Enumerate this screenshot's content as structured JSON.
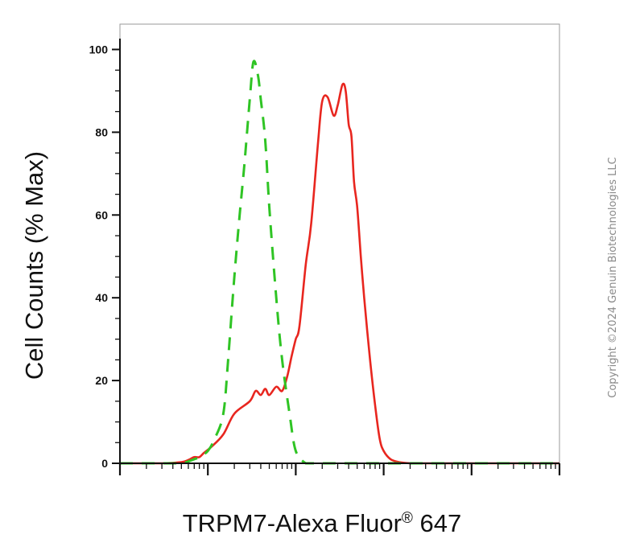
{
  "chart_data": {
    "type": "line",
    "ylabel": "Cell Counts (% Max)",
    "xlabel": {
      "main": "TRPM7-Alexa Fluor",
      "sup": "®",
      "tail": " 647"
    },
    "yticks": [
      "0",
      "20",
      "40",
      "60",
      "80",
      "100"
    ],
    "ylim": [
      0,
      105
    ],
    "xscale": "log",
    "xlim": [
      0.01,
      1000
    ],
    "grid": false,
    "series": [
      {
        "color": "#e8261f",
        "style": "solid",
        "x": [
          0.01,
          0.03,
          0.05,
          0.06,
          0.07,
          0.08,
          0.09,
          0.11,
          0.15,
          0.2,
          0.3,
          0.35,
          0.4,
          0.45,
          0.5,
          0.6,
          0.7,
          0.8,
          0.9,
          1.0,
          1.1,
          1.3,
          1.5,
          1.8,
          2.0,
          2.3,
          2.7,
          3.0,
          3.4,
          3.7,
          4.0,
          4.3,
          4.6,
          5.0,
          5.5,
          6.0,
          7.0,
          8.0,
          9.0,
          10,
          12,
          15,
          20,
          25,
          30,
          40,
          60,
          100,
          300,
          1000
        ],
        "values": [
          0,
          0,
          0.3,
          0.8,
          1.5,
          1.5,
          2.5,
          4,
          7,
          12,
          15,
          17.5,
          16.5,
          18,
          16.5,
          18.5,
          17.5,
          21,
          26,
          30,
          33,
          48,
          58,
          78,
          87.5,
          88.5,
          84,
          86.5,
          91.5,
          90,
          82,
          79,
          68,
          62,
          50,
          40,
          25,
          14,
          6,
          3,
          1,
          0.3,
          0,
          0,
          0,
          0,
          0,
          0,
          0,
          0
        ]
      },
      {
        "color": "#2fc424",
        "style": "dashed",
        "x": [
          0.01,
          0.03,
          0.05,
          0.07,
          0.08,
          0.1,
          0.12,
          0.15,
          0.17,
          0.2,
          0.23,
          0.26,
          0.3,
          0.33,
          0.37,
          0.4,
          0.45,
          0.5,
          0.6,
          0.7,
          0.85,
          1.0,
          1.3,
          1.6,
          2.0,
          3.0,
          10,
          1000
        ],
        "values": [
          0,
          0,
          0,
          1,
          1.5,
          3,
          6,
          12,
          25,
          45,
          60,
          72,
          88,
          97,
          94,
          88,
          78,
          62,
          40,
          25,
          12,
          3,
          0,
          0,
          0,
          0,
          0,
          0
        ]
      }
    ]
  },
  "copyright": "Copyright ©2024 Genuin Biotechnologies LLC"
}
